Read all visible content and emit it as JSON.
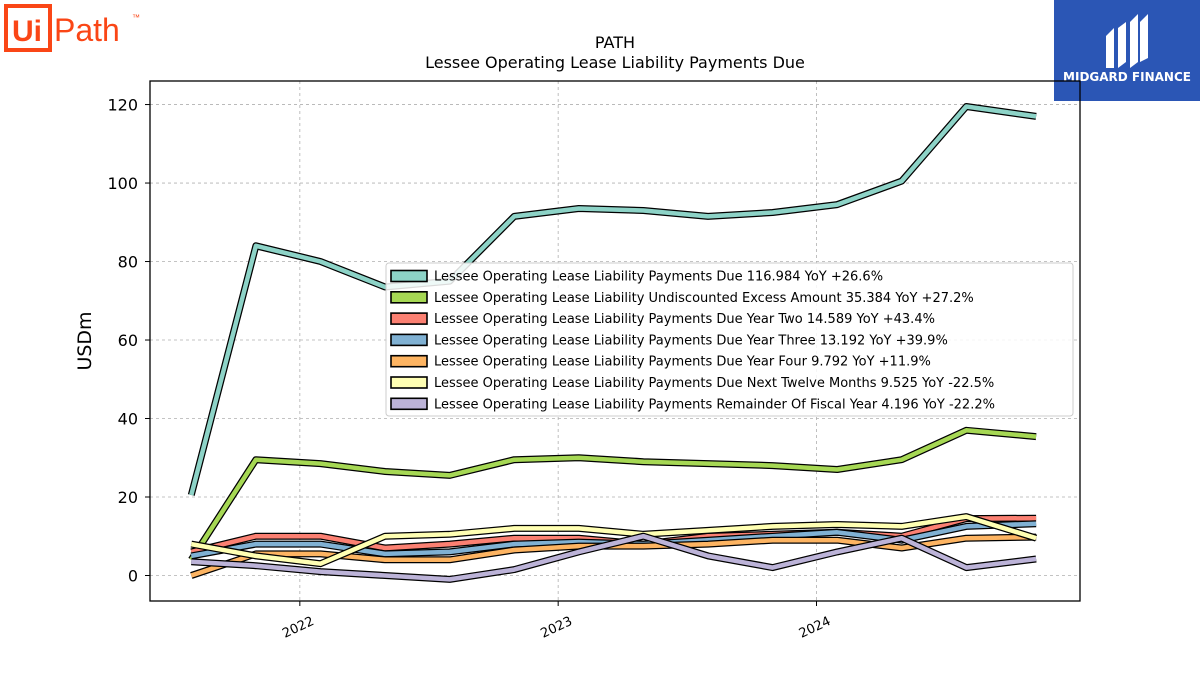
{
  "branding": {
    "left_logo_text": "Path",
    "left_logo_ui": "Ui",
    "left_logo_tm": "™",
    "left_logo_color": "#fa4616",
    "right_logo_text": "MIDGARD FINANCE",
    "right_logo_bg": "#2b56b5"
  },
  "chart_data": {
    "type": "line",
    "title": "PATH",
    "subtitle": "Lessee Operating Lease Liability Payments Due",
    "xlabel": "",
    "ylabel": "USDm",
    "ylim": [
      -6.5,
      126
    ],
    "xlim": [
      2021.42,
      2025.02
    ],
    "yticks": [
      0,
      20,
      40,
      60,
      80,
      100,
      120
    ],
    "xticks": [
      2022,
      2023,
      2024
    ],
    "grid": true,
    "legend_position": "center-right",
    "x": [
      2021.58,
      2021.83,
      2022.08,
      2022.33,
      2022.58,
      2022.83,
      2023.08,
      2023.33,
      2023.58,
      2023.83,
      2024.08,
      2024.33,
      2024.58,
      2024.85
    ],
    "series": [
      {
        "name": "Lessee Operating Lease Liability Payments Due",
        "legend_value": "116.984 YoY +26.6%",
        "color": "#8dd3c7",
        "values": [
          20.5,
          84,
          80,
          73.5,
          75,
          91.5,
          93.5,
          93,
          91.5,
          92.5,
          94.5,
          100.5,
          119.5,
          116.984
        ]
      },
      {
        "name": "Lessee Operating Lease Liability Undiscounted Excess Amount",
        "legend_value": "35.384 YoY +27.2%",
        "color": "#a6d854",
        "values": [
          4,
          29.5,
          28.5,
          26.5,
          25.5,
          29.5,
          30,
          29,
          28.5,
          28,
          27,
          29.5,
          37,
          35.384
        ]
      },
      {
        "name": "Lessee Operating Lease Liability Payments Due Year Two",
        "legend_value": "14.589 YoY +43.4%",
        "color": "#fb8072",
        "values": [
          6,
          10,
          10,
          7,
          8,
          9.5,
          9.5,
          8,
          10,
          10.5,
          11,
          10,
          14.5,
          14.589
        ]
      },
      {
        "name": "Lessee Operating Lease Liability Payments Due Year Three",
        "legend_value": "13.192 YoY +39.9%",
        "color": "#80b1d3",
        "values": [
          5,
          8,
          8,
          5.5,
          6,
          8,
          8.5,
          8,
          9,
          10,
          11,
          9,
          12.5,
          13.192
        ]
      },
      {
        "name": "Lessee Operating Lease Liability Payments Due Year Four",
        "legend_value": "9.792 YoY +11.9%",
        "color": "#fdb462",
        "values": [
          0,
          5.5,
          5.5,
          4,
          4,
          6.5,
          7.5,
          7.5,
          8,
          9,
          9,
          7,
          9.5,
          9.792
        ]
      },
      {
        "name": "Lessee Operating Lease Liability Payments Due Next Twelve Months",
        "legend_value": "9.525 YoY -22.5%",
        "color": "#ffffb3",
        "values": [
          8,
          5,
          3,
          10,
          10.5,
          12,
          12,
          10.5,
          11.5,
          12.5,
          13,
          12.5,
          15,
          9.525
        ]
      },
      {
        "name": "Lessee Operating Lease Liability Payments Remainder Of Fiscal Year",
        "legend_value": "4.196 YoY -22.2%",
        "color": "#bcb3d8",
        "values": [
          3.5,
          2.5,
          1,
          0,
          -1,
          1.5,
          6,
          10,
          5,
          2,
          6,
          9.5,
          2,
          4.196
        ]
      }
    ]
  }
}
